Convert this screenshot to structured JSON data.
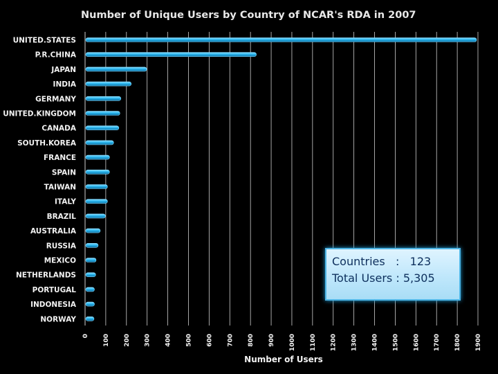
{
  "chart_data": {
    "type": "bar",
    "orientation": "horizontal",
    "title": "Number of Unique Users by Country of NCAR's RDA in 2007",
    "xlabel": "Number of Users",
    "ylabel": "",
    "xlim": [
      0,
      1900
    ],
    "grid": true,
    "categories": [
      "UNITED.STATES",
      "P.R.CHINA",
      "JAPAN",
      "INDIA",
      "GERMANY",
      "UNITED.KINGDOM",
      "CANADA",
      "SOUTH.KOREA",
      "FRANCE",
      "SPAIN",
      "TAIWAN",
      "ITALY",
      "BRAZIL",
      "AUSTRALIA",
      "RUSSIA",
      "MEXICO",
      "NETHERLANDS",
      "PORTUGAL",
      "INDONESIA",
      "NORWAY"
    ],
    "values": [
      1890,
      825,
      295,
      220,
      170,
      165,
      160,
      135,
      115,
      115,
      105,
      105,
      95,
      70,
      60,
      50,
      48,
      42,
      42,
      40
    ],
    "xticks": [
      "0",
      "100",
      "200",
      "300",
      "400",
      "500",
      "600",
      "700",
      "800",
      "900",
      "1000",
      "1100",
      "1200",
      "1300",
      "1400",
      "1500",
      "1600",
      "1700",
      "1800",
      "1900"
    ]
  },
  "summary": {
    "countries_label": "Countries",
    "countries_sep": ":",
    "countries_value": "123",
    "users_label": "Total Users",
    "users_sep": ":",
    "users_value": "5,305"
  },
  "colors": {
    "bar": "#29b6f0",
    "bar_highlight": "#8fe0ff",
    "bar_edge": "#0d6fa0",
    "grid": "#d0d0d0",
    "text": "#f2f2f2"
  }
}
